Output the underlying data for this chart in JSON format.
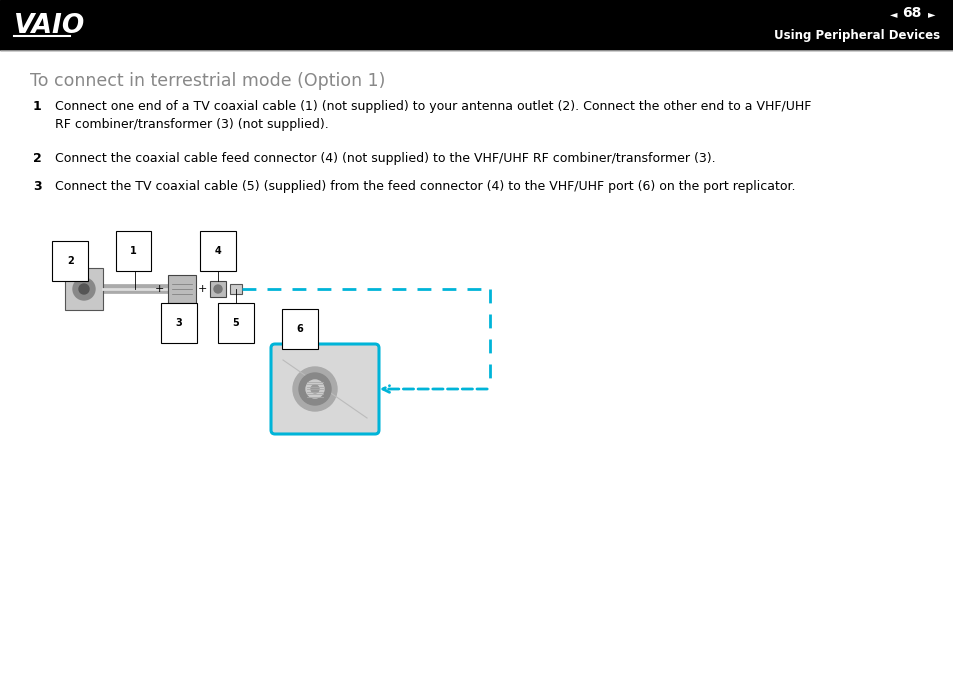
{
  "page_number": "68",
  "header_text": "Using Peripheral Devices",
  "bg_header": "#000000",
  "bg_content": "#ffffff",
  "title": "To connect in terrestrial mode (Option 1)",
  "title_color": "#888888",
  "title_fontsize": 12.5,
  "steps": [
    {
      "number": "1",
      "text": "Connect one end of a TV coaxial cable (1) (not supplied) to your antenna outlet (2). Connect the other end to a VHF/UHF\nRF combiner/transformer (3) (not supplied)."
    },
    {
      "number": "2",
      "text": "Connect the coaxial cable feed connector (4) (not supplied) to the VHF/UHF RF combiner/transformer (3)."
    },
    {
      "number": "3",
      "text": "Connect the TV coaxial cable (5) (supplied) from the feed connector (4) to the VHF/UHF port (6) on the port replicator."
    }
  ],
  "step_fontsize": 9,
  "step_color": "#000000",
  "cyan_color": "#00b4d8",
  "label_fontsize": 8
}
